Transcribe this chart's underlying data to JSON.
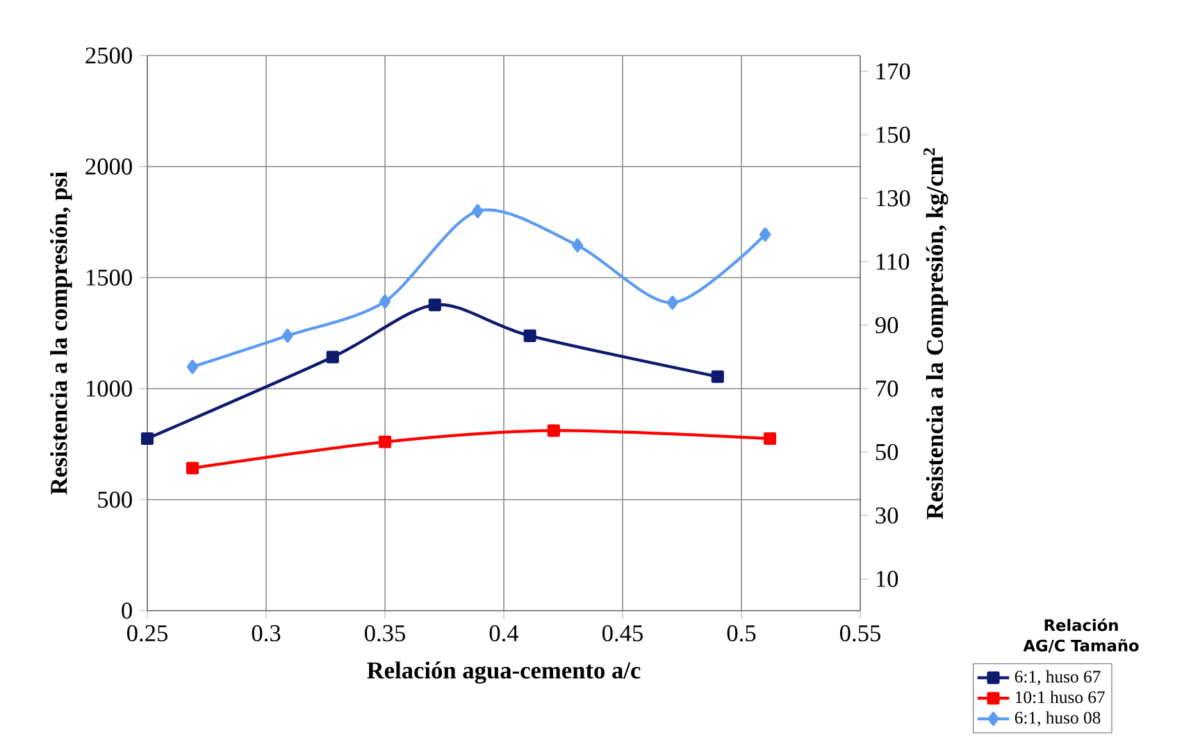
{
  "chart_data": {
    "type": "line",
    "xlabel": "Relación agua-cemento a/c",
    "ylabel": "Resistencia a la compresión, psi",
    "y2label": "Resistencia a la Compresión, kg/cm$^{2}$",
    "legend_title": "Relación AG/C Tamaño",
    "xlim": [
      0.25,
      0.55
    ],
    "xticks": [
      0.25,
      0.3,
      0.35,
      0.4,
      0.45,
      0.5,
      0.55
    ],
    "ylim": [
      0,
      2500
    ],
    "yticks": [
      0,
      500,
      1000,
      1500,
      2000,
      2500
    ],
    "y2lim": [
      0,
      175
    ],
    "y2ticks": [
      10,
      30,
      50,
      70,
      90,
      110,
      130,
      150,
      170
    ],
    "grid": true,
    "legend": "bottom right",
    "series": [
      {
        "name": "6:1, huso 67",
        "color": "#0d1a6e",
        "marker": "square",
        "x": [
          0.25,
          0.328,
          0.371,
          0.411,
          0.49
        ],
        "values": [
          775,
          1142,
          1377,
          1238,
          1054
        ]
      },
      {
        "name": "10:1 huso 67",
        "color": "#ff0000",
        "marker": "square",
        "x": [
          0.269,
          0.35,
          0.421,
          0.512
        ],
        "values": [
          642,
          760,
          811,
          775
        ]
      },
      {
        "name": "6:1, huso 08",
        "color": "#5b9bf0",
        "marker": "diamond",
        "x": [
          0.269,
          0.309,
          0.35,
          0.389,
          0.431,
          0.471,
          0.51
        ],
        "values": [
          1098,
          1238,
          1392,
          1799,
          1645,
          1387,
          1694
        ]
      }
    ]
  }
}
